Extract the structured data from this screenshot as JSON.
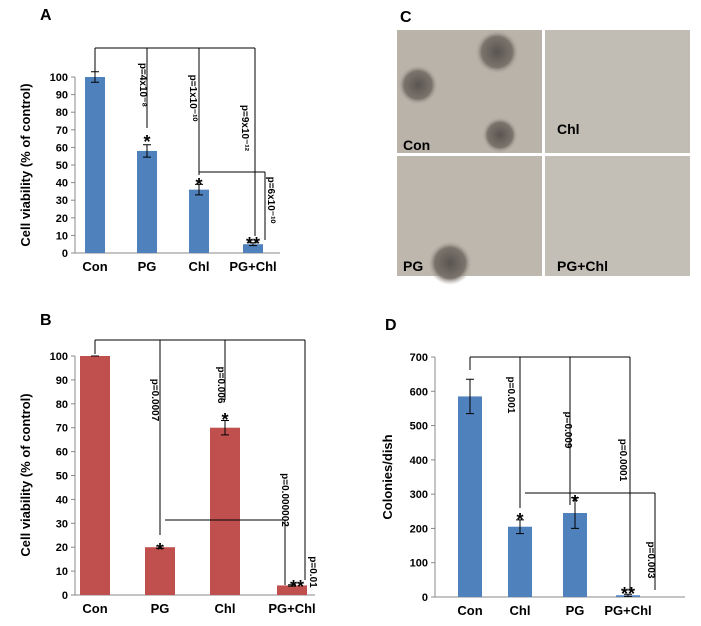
{
  "chart_data": [
    {
      "type": "bar",
      "panel": "A",
      "ylabel": "Cell viability (% of control)",
      "categories": [
        "Con",
        "PG",
        "Chl",
        "PG+Chl"
      ],
      "values": [
        100,
        58,
        36,
        5
      ],
      "errors": [
        3,
        3.5,
        3,
        0.8
      ],
      "color": "#4f81bd",
      "ylim": [
        0,
        100
      ],
      "yticks": [
        0,
        10,
        20,
        30,
        40,
        50,
        60,
        70,
        80,
        90,
        100
      ],
      "annotations": [
        "p=4x10⁻⁸",
        "p=1x10⁻¹⁰",
        "p=9x10⁻¹²",
        "p=6x10⁻¹⁰",
        "*",
        "*",
        "**"
      ]
    },
    {
      "type": "bar",
      "panel": "B",
      "ylabel": "Cell viability (% of control)",
      "categories": [
        "Con",
        "PG",
        "Chl",
        "PG+Chl"
      ],
      "values": [
        100,
        20,
        70,
        4
      ],
      "errors": [
        0,
        0.5,
        3,
        0.3
      ],
      "color": "#c0504d",
      "ylim": [
        0,
        100
      ],
      "yticks": [
        0,
        10,
        20,
        30,
        40,
        50,
        60,
        70,
        80,
        90,
        100
      ],
      "annotations": [
        "p=0.0007",
        "p=0.006",
        "p=0.000002",
        "p=0.01",
        "*",
        "*",
        "**"
      ]
    },
    {
      "type": "bar",
      "panel": "D",
      "ylabel": "Colonies/dish",
      "categories": [
        "Con",
        "Chl",
        "PG",
        "PG+Chl"
      ],
      "values": [
        585,
        205,
        245,
        5
      ],
      "errors": [
        50,
        20,
        45,
        3
      ],
      "color": "#4f81bd",
      "ylim": [
        0,
        700
      ],
      "yticks": [
        0,
        100,
        200,
        300,
        400,
        500,
        600,
        700
      ],
      "annotations": [
        "p=0.001",
        "p=0.009",
        "p=0.0001",
        "p=0.003",
        "*",
        "*",
        "**"
      ]
    }
  ],
  "panel_c": {
    "panel": "C",
    "labels": [
      "Con",
      "Chl",
      "PG",
      "PG+Chl"
    ]
  }
}
